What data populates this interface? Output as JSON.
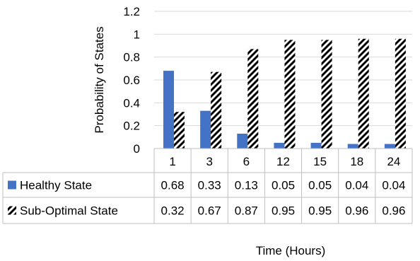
{
  "chart_data": {
    "type": "bar",
    "categories": [
      "1",
      "3",
      "6",
      "12",
      "15",
      "18",
      "24"
    ],
    "series": [
      {
        "name": "Healthy State",
        "values": [
          0.68,
          0.33,
          0.13,
          0.05,
          0.05,
          0.04,
          0.04
        ],
        "table_values": [
          "0.68",
          "0.33",
          "0.13",
          "0.05",
          "0.05",
          "0.04",
          "0.04"
        ],
        "color": "#4472c4",
        "pattern": "solid"
      },
      {
        "name": "Sub-Optimal State",
        "values": [
          0.32,
          0.67,
          0.87,
          0.95,
          0.95,
          0.96,
          0.96
        ],
        "table_values": [
          "0.32",
          "0.67",
          "0.87",
          "0.95",
          "0.95",
          "0.96",
          "0.96"
        ],
        "color": "#000000",
        "pattern": "diagonal-stripes"
      }
    ],
    "yticks": [
      "0",
      "0.2",
      "0.4",
      "0.6",
      "0.8",
      "1",
      "1.2"
    ],
    "ylim": [
      0,
      1.2
    ],
    "xlabel": "Time (Hours)",
    "ylabel": "Probability of States",
    "grid": true,
    "legend": "data-table"
  }
}
